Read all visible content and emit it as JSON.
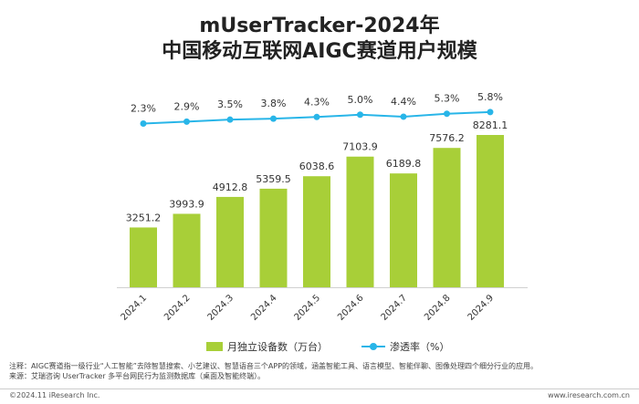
{
  "title_line1": "mUserTracker-2024年",
  "title_line2": "中国移动互联网AIGC赛道用户规模",
  "legend": {
    "bar": "月独立设备数（万台）",
    "line": "渗透率（%）"
  },
  "notes": {
    "note": "注释：AIGC赛道指一级行业“人工智能”去除智慧搜索、小艺建议、智慧语音三个APP的领域，涵盖智能工具、语言模型、智能伴聊、图像处理四个细分行业的应用。",
    "source": "来源：艾瑞咨询 UserTracker 多平台网民行为监测数据库（桌面及智能终端）。"
  },
  "footer": {
    "left": "©2024.11 iResearch Inc.",
    "right": "www.iresearch.com.cn"
  },
  "colors": {
    "bar": "#a8cf38",
    "line": "#28b5e8"
  },
  "chart_data": {
    "type": "bar",
    "categories": [
      "2024.1",
      "2024.2",
      "2024.3",
      "2024.4",
      "2024.5",
      "2024.6",
      "2024.7",
      "2024.8",
      "2024.9"
    ],
    "series": [
      {
        "name": "月独立设备数（万台）",
        "type": "bar",
        "values": [
          3251.2,
          3993.9,
          4912.8,
          5359.5,
          6038.6,
          7103.9,
          6189.8,
          7576.2,
          8281.1
        ],
        "labels": [
          "3251.2",
          "3993.9",
          "4912.8",
          "5359.5",
          "6038.6",
          "7103.9",
          "6189.8",
          "7576.2",
          "8281.1"
        ]
      },
      {
        "name": "渗透率（%）",
        "type": "line",
        "values": [
          2.3,
          2.9,
          3.5,
          3.8,
          4.3,
          5.0,
          4.4,
          5.3,
          5.8
        ],
        "labels": [
          "2.3%",
          "2.9%",
          "3.5%",
          "3.8%",
          "4.3%",
          "5.0%",
          "4.4%",
          "5.3%",
          "5.8%"
        ]
      }
    ],
    "legend_position": "bottom",
    "grid": false
  }
}
